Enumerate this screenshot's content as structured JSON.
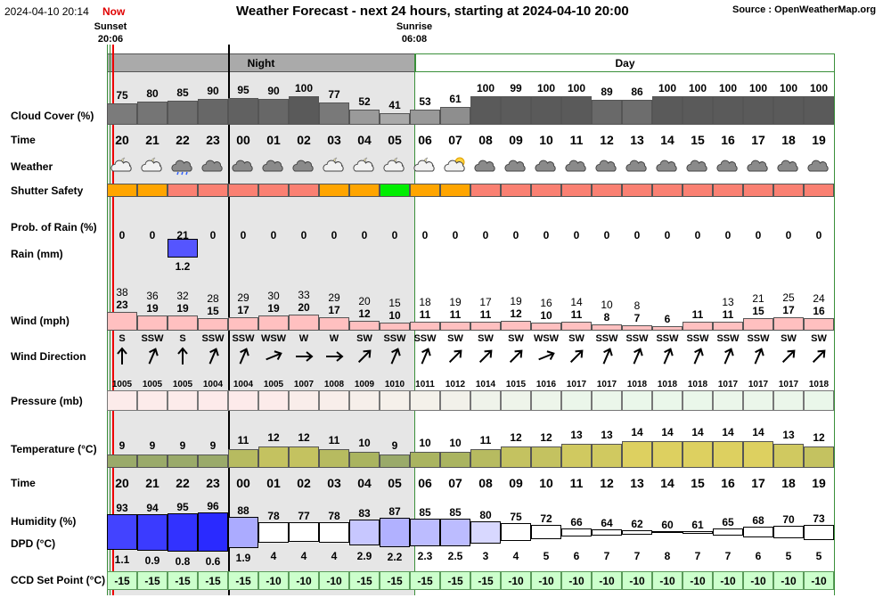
{
  "header": {
    "datetime": "2024-04-10 20:14",
    "now": "Now",
    "title": "Weather Forecast - next 24 hours, starting at 2024-04-10 20:00",
    "source": "Source : OpenWeatherMap.org",
    "sunset_label": "Sunset",
    "sunset_time": "20:06",
    "sunrise_label": "Sunrise",
    "sunrise_time": "06:08",
    "night_label": "Night",
    "day_label": "Day"
  },
  "row_labels": {
    "cloud": "Cloud Cover (%)",
    "time": "Time",
    "weather": "Weather",
    "shutter": "Shutter Safety",
    "rainprob": "Prob. of Rain (%)",
    "rain": "Rain (mm)",
    "wind": "Wind (mph)",
    "winddir": "Wind Direction",
    "pressure": "Pressure (mb)",
    "temperature": "Temperature (°C)",
    "time2": "Time",
    "humidity": "Humidity (%)",
    "dpd": "DPD (°C)",
    "ccd": "CCD Set Point (°C)"
  },
  "colors": {
    "night_bg": "#e6e6e6",
    "day_bg": "#ffffff",
    "header_night": "#aaaaaa",
    "shutter_orange": "#ffa500",
    "shutter_red": "#fa8072",
    "shutter_green": "#00ee00",
    "rain_bar": "#5555ff",
    "wind_bar": "#ffc0c0",
    "ccd_cell": "#ccffcc",
    "sunset_line": "#ee0000",
    "day_border": "#3a8f3a"
  },
  "hours": [
    {
      "time": "20",
      "cloud": "75",
      "icon": "partly-cloudy-night-icon",
      "shutter": "orange",
      "rain_prob": "0",
      "rain_mm": "",
      "wind_gust": "38",
      "wind": "23",
      "wind_dir": "S",
      "dir_deg": "180",
      "pressure": "1005",
      "temp": "9",
      "humidity": "93",
      "dpd": "1.1",
      "ccd": "-15"
    },
    {
      "time": "21",
      "cloud": "80",
      "icon": "partly-cloudy-night-icon",
      "shutter": "orange",
      "rain_prob": "0",
      "rain_mm": "",
      "wind_gust": "36",
      "wind": "19",
      "wind_dir": "SSW",
      "dir_deg": "203",
      "pressure": "1005",
      "temp": "9",
      "humidity": "94",
      "dpd": "0.9",
      "ccd": "-15"
    },
    {
      "time": "22",
      "cloud": "85",
      "icon": "rain-cloud-icon",
      "shutter": "red",
      "rain_prob": "21",
      "rain_mm": "1.2",
      "wind_gust": "32",
      "wind": "19",
      "wind_dir": "S",
      "dir_deg": "180",
      "pressure": "1005",
      "temp": "9",
      "humidity": "95",
      "dpd": "0.8",
      "ccd": "-15"
    },
    {
      "time": "23",
      "cloud": "90",
      "icon": "cloud-icon",
      "shutter": "red",
      "rain_prob": "0",
      "rain_mm": "",
      "wind_gust": "28",
      "wind": "15",
      "wind_dir": "SSW",
      "dir_deg": "203",
      "pressure": "1004",
      "temp": "9",
      "humidity": "96",
      "dpd": "0.6",
      "ccd": "-15"
    },
    {
      "time": "00",
      "cloud": "95",
      "icon": "cloud-icon",
      "shutter": "red",
      "rain_prob": "0",
      "rain_mm": "",
      "wind_gust": "29",
      "wind": "17",
      "wind_dir": "SSW",
      "dir_deg": "203",
      "pressure": "1004",
      "temp": "11",
      "humidity": "88",
      "dpd": "1.9",
      "ccd": "-15"
    },
    {
      "time": "01",
      "cloud": "90",
      "icon": "cloud-icon",
      "shutter": "red",
      "rain_prob": "0",
      "rain_mm": "",
      "wind_gust": "30",
      "wind": "19",
      "wind_dir": "WSW",
      "dir_deg": "248",
      "pressure": "1005",
      "temp": "12",
      "humidity": "78",
      "dpd": "4",
      "ccd": "-10"
    },
    {
      "time": "02",
      "cloud": "100",
      "icon": "cloud-icon",
      "shutter": "red",
      "rain_prob": "0",
      "rain_mm": "",
      "wind_gust": "33",
      "wind": "20",
      "wind_dir": "W",
      "dir_deg": "270",
      "pressure": "1007",
      "temp": "12",
      "humidity": "77",
      "dpd": "4",
      "ccd": "-10"
    },
    {
      "time": "03",
      "cloud": "77",
      "icon": "partly-cloudy-night-icon",
      "shutter": "orange",
      "rain_prob": "0",
      "rain_mm": "",
      "wind_gust": "29",
      "wind": "17",
      "wind_dir": "W",
      "dir_deg": "270",
      "pressure": "1008",
      "temp": "11",
      "humidity": "78",
      "dpd": "4",
      "ccd": "-10"
    },
    {
      "time": "04",
      "cloud": "52",
      "icon": "partly-cloudy-night-icon",
      "shutter": "orange",
      "rain_prob": "0",
      "rain_mm": "",
      "wind_gust": "20",
      "wind": "12",
      "wind_dir": "SW",
      "dir_deg": "225",
      "pressure": "1009",
      "temp": "10",
      "humidity": "83",
      "dpd": "2.9",
      "ccd": "-15"
    },
    {
      "time": "05",
      "cloud": "41",
      "icon": "moon-cloud-icon",
      "shutter": "green",
      "rain_prob": "0",
      "rain_mm": "",
      "wind_gust": "15",
      "wind": "10",
      "wind_dir": "SSW",
      "dir_deg": "203",
      "pressure": "1010",
      "temp": "9",
      "humidity": "87",
      "dpd": "2.2",
      "ccd": "-15"
    },
    {
      "time": "06",
      "cloud": "53",
      "icon": "partly-cloudy-night-icon",
      "shutter": "orange",
      "rain_prob": "0",
      "rain_mm": "",
      "wind_gust": "18",
      "wind": "11",
      "wind_dir": "SSW",
      "dir_deg": "203",
      "pressure": "1011",
      "temp": "10",
      "humidity": "85",
      "dpd": "2.3",
      "ccd": "-15"
    },
    {
      "time": "07",
      "cloud": "61",
      "icon": "partly-sunny-icon",
      "shutter": "orange",
      "rain_prob": "0",
      "rain_mm": "",
      "wind_gust": "19",
      "wind": "11",
      "wind_dir": "SW",
      "dir_deg": "225",
      "pressure": "1012",
      "temp": "10",
      "humidity": "85",
      "dpd": "2.5",
      "ccd": "-15"
    },
    {
      "time": "08",
      "cloud": "100",
      "icon": "cloud-icon",
      "shutter": "red",
      "rain_prob": "0",
      "rain_mm": "",
      "wind_gust": "17",
      "wind": "11",
      "wind_dir": "SW",
      "dir_deg": "225",
      "pressure": "1014",
      "temp": "11",
      "humidity": "80",
      "dpd": "3",
      "ccd": "-15"
    },
    {
      "time": "09",
      "cloud": "99",
      "icon": "cloud-icon",
      "shutter": "red",
      "rain_prob": "0",
      "rain_mm": "",
      "wind_gust": "19",
      "wind": "12",
      "wind_dir": "SW",
      "dir_deg": "225",
      "pressure": "1015",
      "temp": "12",
      "humidity": "75",
      "dpd": "4",
      "ccd": "-10"
    },
    {
      "time": "10",
      "cloud": "100",
      "icon": "cloud-icon",
      "shutter": "red",
      "rain_prob": "0",
      "rain_mm": "",
      "wind_gust": "16",
      "wind": "10",
      "wind_dir": "WSW",
      "dir_deg": "248",
      "pressure": "1016",
      "temp": "12",
      "humidity": "72",
      "dpd": "5",
      "ccd": "-10"
    },
    {
      "time": "11",
      "cloud": "100",
      "icon": "cloud-icon",
      "shutter": "red",
      "rain_prob": "0",
      "rain_mm": "",
      "wind_gust": "14",
      "wind": "11",
      "wind_dir": "SW",
      "dir_deg": "225",
      "pressure": "1017",
      "temp": "13",
      "humidity": "66",
      "dpd": "6",
      "ccd": "-10"
    },
    {
      "time": "12",
      "cloud": "89",
      "icon": "cloud-icon",
      "shutter": "red",
      "rain_prob": "0",
      "rain_mm": "",
      "wind_gust": "10",
      "wind": "8",
      "wind_dir": "SSW",
      "dir_deg": "203",
      "pressure": "1017",
      "temp": "13",
      "humidity": "64",
      "dpd": "7",
      "ccd": "-10"
    },
    {
      "time": "13",
      "cloud": "86",
      "icon": "cloud-icon",
      "shutter": "red",
      "rain_prob": "0",
      "rain_mm": "",
      "wind_gust": "8",
      "wind": "7",
      "wind_dir": "SSW",
      "dir_deg": "203",
      "pressure": "1018",
      "temp": "14",
      "humidity": "62",
      "dpd": "7",
      "ccd": "-10"
    },
    {
      "time": "14",
      "cloud": "100",
      "icon": "cloud-icon",
      "shutter": "red",
      "rain_prob": "0",
      "rain_mm": "",
      "wind_gust": "",
      "wind": "6",
      "wind_dir": "SSW",
      "dir_deg": "203",
      "pressure": "1018",
      "temp": "14",
      "humidity": "60",
      "dpd": "8",
      "ccd": "-10"
    },
    {
      "time": "15",
      "cloud": "100",
      "icon": "cloud-icon",
      "shutter": "red",
      "rain_prob": "0",
      "rain_mm": "",
      "wind_gust": "",
      "wind": "11",
      "wind_dir": "SSW",
      "dir_deg": "203",
      "pressure": "1018",
      "temp": "14",
      "humidity": "61",
      "dpd": "7",
      "ccd": "-10"
    },
    {
      "time": "16",
      "cloud": "100",
      "icon": "cloud-icon",
      "shutter": "red",
      "rain_prob": "0",
      "rain_mm": "",
      "wind_gust": "13",
      "wind": "11",
      "wind_dir": "SSW",
      "dir_deg": "203",
      "pressure": "1017",
      "temp": "14",
      "humidity": "65",
      "dpd": "7",
      "ccd": "-10"
    },
    {
      "time": "17",
      "cloud": "100",
      "icon": "cloud-icon",
      "shutter": "red",
      "rain_prob": "0",
      "rain_mm": "",
      "wind_gust": "21",
      "wind": "15",
      "wind_dir": "SSW",
      "dir_deg": "203",
      "pressure": "1017",
      "temp": "14",
      "humidity": "68",
      "dpd": "6",
      "ccd": "-10"
    },
    {
      "time": "18",
      "cloud": "100",
      "icon": "cloud-icon",
      "shutter": "red",
      "rain_prob": "0",
      "rain_mm": "",
      "wind_gust": "25",
      "wind": "17",
      "wind_dir": "SW",
      "dir_deg": "225",
      "pressure": "1017",
      "temp": "13",
      "humidity": "70",
      "dpd": "5",
      "ccd": "-10"
    },
    {
      "time": "19",
      "cloud": "100",
      "icon": "cloud-icon",
      "shutter": "red",
      "rain_prob": "0",
      "rain_mm": "",
      "wind_gust": "24",
      "wind": "16",
      "wind_dir": "SW",
      "dir_deg": "225",
      "pressure": "1018",
      "temp": "12",
      "humidity": "73",
      "dpd": "5",
      "ccd": "-10"
    }
  ]
}
